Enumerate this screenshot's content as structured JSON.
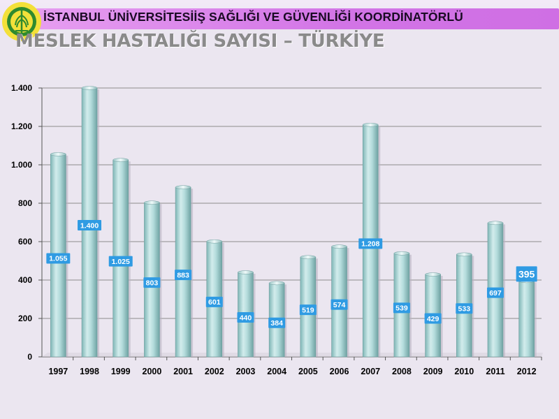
{
  "header": {
    "institution": "İSTANBUL ÜNİVERSİTESİİŞ SAĞLIĞI VE GÜVENLİĞİ KOORDİNATÖRLÜ",
    "logo_icon": "university-seal-icon"
  },
  "colors": {
    "banner": "#d47ae6",
    "bar": "#a9d2d2",
    "label_box": "#2f9be3",
    "label_text": "#ffffff"
  },
  "chart_data": {
    "type": "bar",
    "title": "MESLEK HASTALIĞI SAYISI – TÜRKİYE",
    "xlabel": "",
    "ylabel": "",
    "categories": [
      "1997",
      "1998",
      "1999",
      "2000",
      "2001",
      "2002",
      "2003",
      "2004",
      "2005",
      "2006",
      "2007",
      "2008",
      "2009",
      "2010",
      "2011",
      "2012"
    ],
    "values": [
      1055,
      1400,
      1025,
      803,
      883,
      601,
      440,
      384,
      519,
      574,
      1208,
      539,
      429,
      533,
      697,
      395
    ],
    "value_labels": [
      "1.055",
      "1.400",
      "1.025",
      "803",
      "883",
      "601",
      "440",
      "384",
      "519",
      "574",
      "1.208",
      "539",
      "429",
      "533",
      "697",
      "395"
    ],
    "ylim": [
      0,
      1400
    ],
    "yticks": [
      0,
      200,
      400,
      600,
      800,
      1000,
      1200,
      1400
    ],
    "ytick_labels": [
      "0",
      "200",
      "400",
      "600",
      "800",
      "1.000",
      "1.200",
      "1.400"
    ],
    "grid": true,
    "legend": "none"
  }
}
